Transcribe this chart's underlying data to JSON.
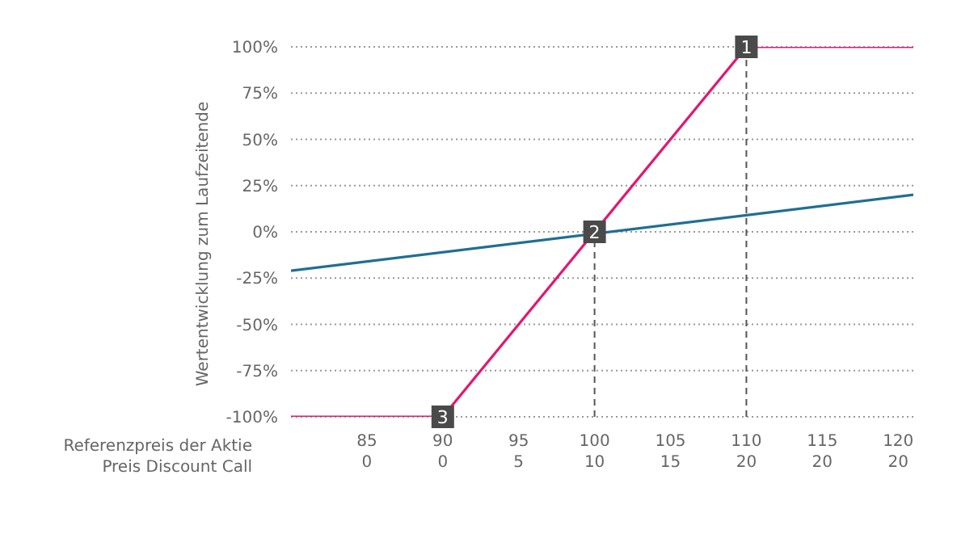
{
  "chart_data": {
    "type": "line",
    "ylabel": "Wertentwicklung zum Laufzeitende",
    "xlabel": "Referenzpreis der Aktie",
    "xlim": [
      80,
      121
    ],
    "xticks": [
      85,
      90,
      95,
      100,
      105,
      110,
      115,
      120
    ],
    "ylim": [
      -100,
      100
    ],
    "yticks": [
      {
        "value": -100,
        "label": "-100%"
      },
      {
        "value": -75,
        "label": "-75%"
      },
      {
        "value": -50,
        "label": "-50%"
      },
      {
        "value": -25,
        "label": "-25%"
      },
      {
        "value": 0,
        "label": "0%"
      },
      {
        "value": 25,
        "label": "25%"
      },
      {
        "value": 50,
        "label": "50%"
      },
      {
        "value": 75,
        "label": "75%"
      },
      {
        "value": 100,
        "label": "100%"
      }
    ],
    "grid": "y",
    "series": [
      {
        "color": "#1f6f94",
        "x": [
          80,
          121
        ],
        "values": [
          -21,
          20
        ]
      },
      {
        "color": "#e3176f",
        "x": [
          80,
          90,
          100,
          110,
          121
        ],
        "values": [
          -100,
          -100,
          0,
          100,
          100
        ]
      }
    ],
    "ref_lines": [
      {
        "axis": "x",
        "value": 100,
        "color": "#555555",
        "line_style": "dashed"
      },
      {
        "axis": "x",
        "value": 110,
        "color": "#555555",
        "line_style": "dashed"
      }
    ],
    "annotations": [
      {
        "text": "1",
        "x": 110,
        "y": 100
      },
      {
        "text": "2",
        "x": 100,
        "y": 0
      },
      {
        "text": "3",
        "x": 90,
        "y": -100
      },
      "Preis Discount Call",
      "0",
      "0",
      "5",
      "10",
      "15",
      "20",
      "20",
      "20"
    ]
  }
}
